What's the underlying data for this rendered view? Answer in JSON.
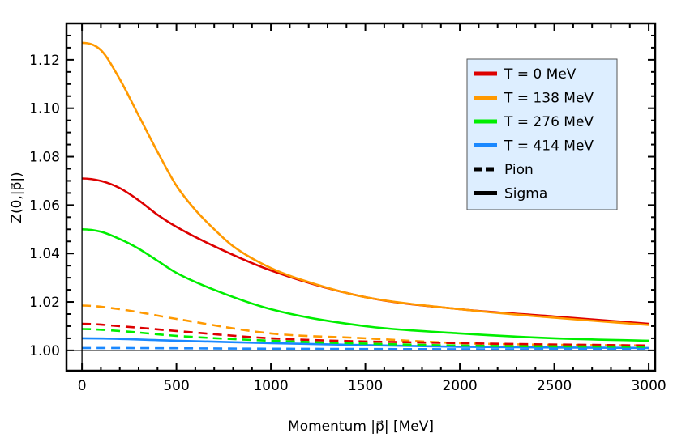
{
  "chart_data": {
    "type": "line",
    "xlabel": "Momentum |p⃗| [MeV]",
    "ylabel": "Z(0,|p⃗|)",
    "xlim": [
      -82,
      3034
    ],
    "ylim": [
      0.9916,
      1.135
    ],
    "xticks": [
      0,
      500,
      1000,
      1500,
      2000,
      2500,
      3000
    ],
    "xtick_labels": [
      "0",
      "500",
      "1000",
      "1500",
      "2000",
      "2500",
      "3000"
    ],
    "yticks": [
      1.0,
      1.02,
      1.04,
      1.06,
      1.08,
      1.1,
      1.12
    ],
    "ytick_labels": [
      "1.00",
      "1.02",
      "1.04",
      "1.06",
      "1.08",
      "1.10",
      "1.12"
    ],
    "grid": false,
    "legend_position": "top-right",
    "legend": [
      {
        "label": "T = 0 MeV",
        "color": "#dd0000",
        "style": "solid"
      },
      {
        "label": "T = 138 MeV",
        "color": "#ff9900",
        "style": "solid"
      },
      {
        "label": "T = 276 MeV",
        "color": "#00ee00",
        "style": "solid"
      },
      {
        "label": "T = 414 MeV",
        "color": "#1a88ff",
        "style": "solid"
      },
      {
        "label": "Pion",
        "color": "#000000",
        "style": "dashed"
      },
      {
        "label": "Sigma",
        "color": "#000000",
        "style": "solid"
      }
    ],
    "series": [
      {
        "T": "0 MeV",
        "particle": "Sigma",
        "color": "#dd0000",
        "dashed": false,
        "x": [
          0,
          100,
          200,
          300,
          400,
          500,
          700,
          1000,
          1500,
          2000,
          2500,
          3000
        ],
        "y": [
          1.071,
          1.07,
          1.067,
          1.062,
          1.056,
          1.051,
          1.043,
          1.033,
          1.022,
          1.017,
          1.014,
          1.011
        ]
      },
      {
        "T": "138 MeV",
        "particle": "Sigma",
        "color": "#ff9900",
        "dashed": false,
        "x": [
          0,
          100,
          200,
          300,
          400,
          500,
          600,
          700,
          800,
          1000,
          1250,
          1500,
          2000,
          2500,
          3000
        ],
        "y": [
          1.127,
          1.124,
          1.112,
          1.097,
          1.082,
          1.068,
          1.058,
          1.05,
          1.043,
          1.034,
          1.027,
          1.022,
          1.017,
          1.0135,
          1.0105
        ]
      },
      {
        "T": "276 MeV",
        "particle": "Sigma",
        "color": "#00ee00",
        "dashed": false,
        "x": [
          0,
          100,
          200,
          300,
          400,
          500,
          700,
          1000,
          1500,
          2000,
          2500,
          3000
        ],
        "y": [
          1.05,
          1.049,
          1.046,
          1.042,
          1.037,
          1.032,
          1.025,
          1.017,
          1.01,
          1.007,
          1.005,
          1.004
        ]
      },
      {
        "T": "414 MeV",
        "particle": "Sigma",
        "color": "#1a88ff",
        "dashed": false,
        "x": [
          0,
          500,
          1000,
          2000,
          3000
        ],
        "y": [
          1.005,
          1.004,
          1.003,
          1.0015,
          1.001
        ]
      },
      {
        "T": "138 MeV",
        "particle": "Pion",
        "color": "#ff9900",
        "dashed": true,
        "x": [
          0,
          200,
          500,
          1000,
          1500,
          2000,
          3000
        ],
        "y": [
          1.0185,
          1.017,
          1.013,
          1.007,
          1.005,
          1.003,
          1.002
        ]
      },
      {
        "T": "0 MeV",
        "particle": "Pion",
        "color": "#dd0000",
        "dashed": true,
        "x": [
          0,
          200,
          500,
          1000,
          2000,
          3000
        ],
        "y": [
          1.011,
          1.01,
          1.008,
          1.005,
          1.003,
          1.002
        ]
      },
      {
        "T": "276 MeV",
        "particle": "Pion",
        "color": "#00ee00",
        "dashed": true,
        "x": [
          0,
          200,
          500,
          1000,
          2000,
          3000
        ],
        "y": [
          1.0088,
          1.008,
          1.006,
          1.004,
          1.002,
          1.0015
        ]
      },
      {
        "T": "414 MeV",
        "particle": "Pion",
        "color": "#1a88ff",
        "dashed": true,
        "x": [
          0,
          1000,
          3000
        ],
        "y": [
          1.001,
          1.0007,
          1.0003
        ]
      }
    ]
  }
}
